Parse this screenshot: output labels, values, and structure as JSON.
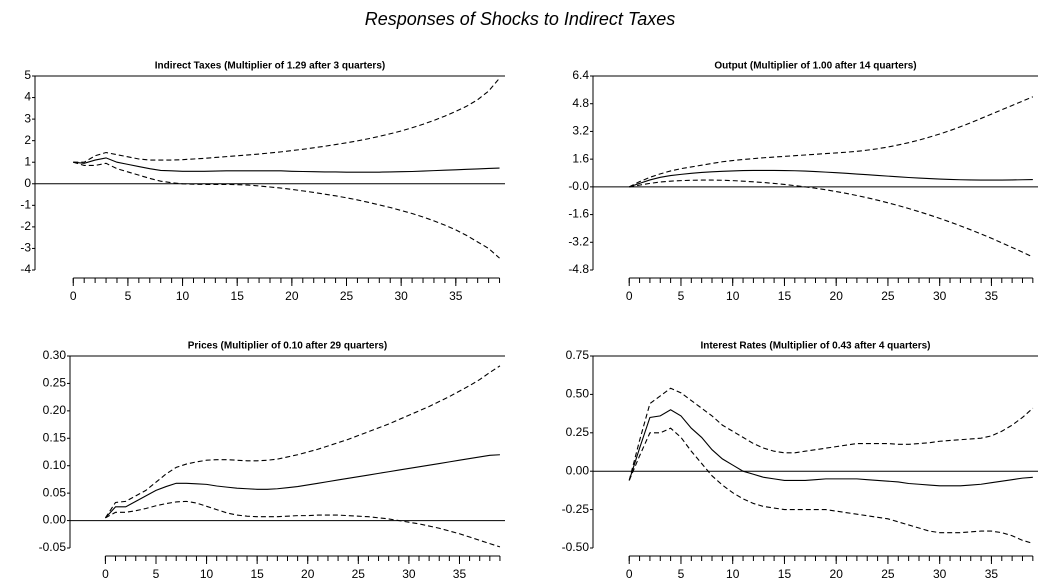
{
  "title": "Responses of Shocks to Indirect Taxes",
  "chart_data": [
    {
      "type": "line",
      "title": "Indirect Taxes (Multiplier of 1.29 after 3 quarters)",
      "x": [
        0,
        1,
        2,
        3,
        4,
        5,
        6,
        7,
        8,
        9,
        10,
        11,
        12,
        13,
        14,
        15,
        16,
        17,
        18,
        19,
        20,
        21,
        22,
        23,
        24,
        25,
        26,
        27,
        28,
        29,
        30,
        31,
        32,
        33,
        34,
        35,
        36,
        37,
        38,
        39
      ],
      "xlim": [
        -3.5,
        39.5
      ],
      "xticks": [
        0,
        5,
        10,
        15,
        20,
        25,
        30,
        35
      ],
      "ylim": [
        -4,
        5
      ],
      "yticks": [
        -4,
        -3,
        -2,
        -1,
        0,
        1,
        2,
        3,
        4,
        5
      ],
      "series": [
        {
          "color": "#000000",
          "values": [
            1.0,
            0.95,
            1.1,
            1.2,
            1.0,
            0.9,
            0.8,
            0.7,
            0.62,
            0.6,
            0.58,
            0.58,
            0.58,
            0.59,
            0.6,
            0.6,
            0.6,
            0.6,
            0.6,
            0.6,
            0.58,
            0.57,
            0.56,
            0.55,
            0.55,
            0.54,
            0.54,
            0.54,
            0.54,
            0.55,
            0.56,
            0.57,
            0.59,
            0.61,
            0.63,
            0.65,
            0.67,
            0.69,
            0.71,
            0.73
          ]
        },
        {
          "color": "#000000",
          "dash": true,
          "values": [
            1.0,
            1.0,
            1.3,
            1.45,
            1.35,
            1.25,
            1.15,
            1.1,
            1.1,
            1.1,
            1.12,
            1.15,
            1.18,
            1.22,
            1.26,
            1.3,
            1.34,
            1.38,
            1.43,
            1.48,
            1.54,
            1.6,
            1.67,
            1.74,
            1.82,
            1.9,
            1.99,
            2.09,
            2.2,
            2.32,
            2.45,
            2.6,
            2.76,
            2.94,
            3.14,
            3.36,
            3.6,
            3.9,
            4.3,
            4.9
          ]
        },
        {
          "color": "#000000",
          "dash": true,
          "values": [
            1.0,
            0.85,
            0.85,
            0.95,
            0.7,
            0.55,
            0.4,
            0.25,
            0.12,
            0.05,
            0.0,
            -0.02,
            -0.03,
            -0.03,
            -0.03,
            -0.04,
            -0.06,
            -0.1,
            -0.15,
            -0.2,
            -0.26,
            -0.33,
            -0.4,
            -0.48,
            -0.56,
            -0.65,
            -0.75,
            -0.86,
            -0.98,
            -1.1,
            -1.24,
            -1.38,
            -1.54,
            -1.72,
            -1.92,
            -2.14,
            -2.4,
            -2.7,
            -3.0,
            -3.45
          ]
        }
      ]
    },
    {
      "type": "line",
      "title": "Output (Multiplier of 1.00 after 14 quarters)",
      "x": [
        0,
        1,
        2,
        3,
        4,
        5,
        6,
        7,
        8,
        9,
        10,
        11,
        12,
        13,
        14,
        15,
        16,
        17,
        18,
        19,
        20,
        21,
        22,
        23,
        24,
        25,
        26,
        27,
        28,
        29,
        30,
        31,
        32,
        33,
        34,
        35,
        36,
        37,
        38,
        39
      ],
      "xlim": [
        -3.5,
        39.5
      ],
      "xticks": [
        0,
        5,
        10,
        15,
        20,
        25,
        30,
        35
      ],
      "ylim": [
        -4.8,
        6.4
      ],
      "yticks": [
        -4.8,
        -3.2,
        -1.6,
        {
          "value": 0,
          "label": "-0.0"
        },
        1.6,
        3.2,
        4.8,
        6.4
      ],
      "series": [
        {
          "color": "#000000",
          "values": [
            0,
            0.2,
            0.4,
            0.55,
            0.65,
            0.72,
            0.78,
            0.83,
            0.87,
            0.9,
            0.92,
            0.94,
            0.95,
            0.95,
            0.95,
            0.94,
            0.93,
            0.91,
            0.88,
            0.85,
            0.82,
            0.78,
            0.74,
            0.7,
            0.66,
            0.62,
            0.58,
            0.54,
            0.51,
            0.48,
            0.45,
            0.43,
            0.41,
            0.4,
            0.39,
            0.39,
            0.39,
            0.4,
            0.41,
            0.42
          ]
        },
        {
          "color": "#000000",
          "dash": true,
          "values": [
            0,
            0.3,
            0.55,
            0.75,
            0.92,
            1.05,
            1.15,
            1.25,
            1.35,
            1.45,
            1.52,
            1.58,
            1.63,
            1.68,
            1.72,
            1.76,
            1.8,
            1.84,
            1.88,
            1.92,
            1.96,
            2.0,
            2.05,
            2.12,
            2.2,
            2.3,
            2.42,
            2.55,
            2.7,
            2.87,
            3.05,
            3.25,
            3.47,
            3.7,
            3.95,
            4.2,
            4.45,
            4.7,
            4.95,
            5.2
          ]
        },
        {
          "color": "#000000",
          "dash": true,
          "values": [
            0,
            0.1,
            0.2,
            0.28,
            0.33,
            0.36,
            0.38,
            0.39,
            0.39,
            0.38,
            0.36,
            0.33,
            0.29,
            0.25,
            0.2,
            0.14,
            0.07,
            0.0,
            -0.08,
            -0.17,
            -0.27,
            -0.38,
            -0.5,
            -0.63,
            -0.77,
            -0.92,
            -1.08,
            -1.25,
            -1.43,
            -1.62,
            -1.82,
            -2.03,
            -2.25,
            -2.48,
            -2.72,
            -2.97,
            -3.23,
            -3.5,
            -3.77,
            -4.05
          ]
        }
      ]
    },
    {
      "type": "line",
      "title": "Prices (Multiplier of 0.10 after 29 quarters)",
      "x": [
        0,
        1,
        2,
        3,
        4,
        5,
        6,
        7,
        8,
        9,
        10,
        11,
        12,
        13,
        14,
        15,
        16,
        17,
        18,
        19,
        20,
        21,
        22,
        23,
        24,
        25,
        26,
        27,
        28,
        29,
        30,
        31,
        32,
        33,
        34,
        35,
        36,
        37,
        38,
        39
      ],
      "xlim": [
        -3.5,
        39.5
      ],
      "xticks": [
        0,
        5,
        10,
        15,
        20,
        25,
        30,
        35
      ],
      "ylim": [
        -0.05,
        0.3
      ],
      "yticks": [
        -0.05,
        {
          "value": 0,
          "label": "0.00"
        },
        0.05,
        {
          "value": 0.1,
          "label": "0.10"
        },
        0.15,
        {
          "value": 0.2,
          "label": "0.20"
        },
        0.25,
        {
          "value": 0.3,
          "label": "0.30"
        }
      ],
      "series": [
        {
          "color": "#000000",
          "values": [
            0.005,
            0.025,
            0.025,
            0.035,
            0.045,
            0.055,
            0.062,
            0.068,
            0.068,
            0.067,
            0.066,
            0.063,
            0.061,
            0.059,
            0.058,
            0.057,
            0.057,
            0.058,
            0.06,
            0.062,
            0.065,
            0.068,
            0.071,
            0.074,
            0.077,
            0.08,
            0.083,
            0.086,
            0.089,
            0.092,
            0.095,
            0.098,
            0.101,
            0.104,
            0.107,
            0.11,
            0.113,
            0.116,
            0.119,
            0.12
          ]
        },
        {
          "color": "#000000",
          "dash": true,
          "values": [
            0.005,
            0.033,
            0.035,
            0.045,
            0.055,
            0.07,
            0.085,
            0.097,
            0.103,
            0.107,
            0.11,
            0.111,
            0.111,
            0.11,
            0.109,
            0.109,
            0.11,
            0.112,
            0.116,
            0.12,
            0.125,
            0.13,
            0.136,
            0.142,
            0.148,
            0.155,
            0.162,
            0.169,
            0.176,
            0.184,
            0.192,
            0.2,
            0.208,
            0.217,
            0.226,
            0.236,
            0.246,
            0.257,
            0.27,
            0.282
          ]
        },
        {
          "color": "#000000",
          "dash": true,
          "values": [
            0.005,
            0.015,
            0.015,
            0.018,
            0.022,
            0.027,
            0.031,
            0.034,
            0.035,
            0.032,
            0.026,
            0.02,
            0.014,
            0.01,
            0.008,
            0.007,
            0.007,
            0.007,
            0.008,
            0.009,
            0.009,
            0.01,
            0.01,
            0.01,
            0.009,
            0.008,
            0.007,
            0.005,
            0.003,
            0.0,
            -0.003,
            -0.006,
            -0.01,
            -0.014,
            -0.019,
            -0.024,
            -0.03,
            -0.036,
            -0.042,
            -0.048
          ]
        }
      ]
    },
    {
      "type": "line",
      "title": "Interest Rates (Multiplier of 0.43 after 4 quarters)",
      "x": [
        0,
        1,
        2,
        3,
        4,
        5,
        6,
        7,
        8,
        9,
        10,
        11,
        12,
        13,
        14,
        15,
        16,
        17,
        18,
        19,
        20,
        21,
        22,
        23,
        24,
        25,
        26,
        27,
        28,
        29,
        30,
        31,
        32,
        33,
        34,
        35,
        36,
        37,
        38,
        39
      ],
      "xlim": [
        -3.5,
        39.5
      ],
      "xticks": [
        0,
        5,
        10,
        15,
        20,
        25,
        30,
        35
      ],
      "ylim": [
        -0.5,
        0.75
      ],
      "yticks": [
        {
          "value": -0.5,
          "label": "-0.50"
        },
        -0.25,
        {
          "value": 0,
          "label": "0.00"
        },
        0.25,
        {
          "value": 0.5,
          "label": "0.50"
        },
        0.75
      ],
      "series": [
        {
          "color": "#000000",
          "values": [
            -0.06,
            0.15,
            0.35,
            0.36,
            0.4,
            0.36,
            0.28,
            0.22,
            0.14,
            0.08,
            0.04,
            0.0,
            -0.02,
            -0.04,
            -0.05,
            -0.06,
            -0.06,
            -0.06,
            -0.055,
            -0.05,
            -0.05,
            -0.05,
            -0.05,
            -0.055,
            -0.06,
            -0.065,
            -0.07,
            -0.08,
            -0.085,
            -0.09,
            -0.095,
            -0.095,
            -0.095,
            -0.09,
            -0.085,
            -0.075,
            -0.065,
            -0.055,
            -0.045,
            -0.04
          ]
        },
        {
          "color": "#000000",
          "dash": true,
          "values": [
            -0.06,
            0.2,
            0.44,
            0.49,
            0.54,
            0.51,
            0.46,
            0.41,
            0.36,
            0.3,
            0.26,
            0.22,
            0.18,
            0.15,
            0.13,
            0.12,
            0.12,
            0.13,
            0.14,
            0.15,
            0.16,
            0.17,
            0.18,
            0.18,
            0.18,
            0.18,
            0.175,
            0.175,
            0.18,
            0.185,
            0.195,
            0.2,
            0.205,
            0.21,
            0.215,
            0.23,
            0.26,
            0.3,
            0.35,
            0.41
          ]
        },
        {
          "color": "#000000",
          "dash": true,
          "values": [
            -0.06,
            0.1,
            0.25,
            0.25,
            0.28,
            0.22,
            0.13,
            0.05,
            -0.03,
            -0.09,
            -0.14,
            -0.18,
            -0.21,
            -0.23,
            -0.24,
            -0.25,
            -0.25,
            -0.25,
            -0.25,
            -0.25,
            -0.26,
            -0.27,
            -0.28,
            -0.29,
            -0.3,
            -0.31,
            -0.33,
            -0.35,
            -0.37,
            -0.39,
            -0.4,
            -0.4,
            -0.4,
            -0.395,
            -0.39,
            -0.39,
            -0.4,
            -0.42,
            -0.45,
            -0.47
          ]
        }
      ]
    }
  ]
}
